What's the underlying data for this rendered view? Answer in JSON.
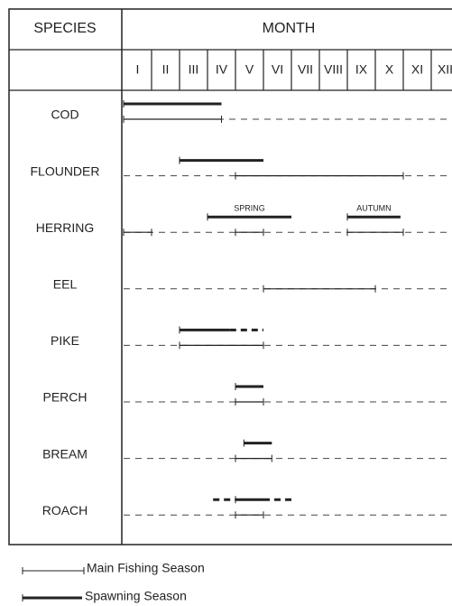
{
  "header": {
    "species": "SPECIES",
    "month": "MONTH"
  },
  "months": [
    "I",
    "II",
    "III",
    "IV",
    "V",
    "VI",
    "VII",
    "VIII",
    "IX",
    "X",
    "XI",
    "XII"
  ],
  "species": [
    {
      "name": "COD",
      "spawning": [
        [
          0,
          3.5
        ],
        [
          11.8,
          12
        ]
      ],
      "spawning_uncertain": [],
      "fishing": [
        [
          0,
          3.5
        ],
        [
          11.8,
          12
        ]
      ]
    },
    {
      "name": "FLOUNDER",
      "spawning": [
        [
          2,
          5
        ]
      ],
      "spawning_uncertain": [],
      "fishing": [
        [
          4,
          10
        ]
      ]
    },
    {
      "name": "HERRING",
      "spawning": [
        [
          3,
          6
        ],
        [
          8,
          9.9
        ]
      ],
      "spawning_labels": [
        "SPRING",
        "AUTUMN"
      ],
      "spawning_uncertain": [],
      "fishing": [
        [
          0,
          1
        ],
        [
          4,
          5
        ],
        [
          8,
          10
        ]
      ]
    },
    {
      "name": "EEL",
      "spawning": [],
      "spawning_uncertain": [],
      "fishing": [
        [
          5,
          9
        ]
      ]
    },
    {
      "name": "PIKE",
      "spawning": [
        [
          2,
          3.8
        ]
      ],
      "spawning_uncertain": [
        [
          3.8,
          5
        ]
      ],
      "fishing": [
        [
          2,
          5
        ]
      ]
    },
    {
      "name": "PERCH",
      "spawning": [
        [
          4,
          5
        ]
      ],
      "spawning_uncertain": [],
      "fishing": [
        [
          4,
          5
        ]
      ]
    },
    {
      "name": "BREAM",
      "spawning": [
        [
          4.3,
          5.3
        ]
      ],
      "spawning_uncertain": [],
      "fishing": [
        [
          4,
          5.3
        ]
      ]
    },
    {
      "name": "ROACH",
      "spawning": [
        [
          4,
          5
        ]
      ],
      "spawning_uncertain": [
        [
          3.2,
          4
        ],
        [
          5,
          6
        ]
      ],
      "fishing": [
        [
          4,
          5
        ]
      ]
    }
  ],
  "legend": {
    "fishing": "Main Fishing Season",
    "spawning": "Spawning Season"
  }
}
